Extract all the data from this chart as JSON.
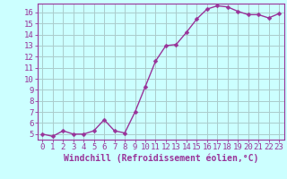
{
  "x": [
    0,
    1,
    2,
    3,
    4,
    5,
    6,
    7,
    8,
    9,
    10,
    11,
    12,
    13,
    14,
    15,
    16,
    17,
    18,
    19,
    20,
    21,
    22,
    23
  ],
  "y": [
    5.0,
    4.8,
    5.3,
    5.0,
    5.0,
    5.3,
    6.3,
    5.3,
    5.1,
    7.0,
    9.3,
    11.6,
    13.0,
    13.1,
    14.2,
    15.4,
    16.3,
    16.6,
    16.5,
    16.1,
    15.8,
    15.8,
    15.5,
    15.9
  ],
  "line_color": "#993399",
  "marker": "D",
  "marker_size": 2.5,
  "linewidth": 1.0,
  "xlabel": "Windchill (Refroidissement éolien,°C)",
  "xlabel_fontsize": 7,
  "ylabel_ticks": [
    5,
    6,
    7,
    8,
    9,
    10,
    11,
    12,
    13,
    14,
    15,
    16
  ],
  "ylim": [
    4.5,
    16.8
  ],
  "xlim": [
    -0.5,
    23.5
  ],
  "bg_color": "#ccffff",
  "grid_color": "#aacccc",
  "tick_label_fontsize": 6.5,
  "xtick_labels": [
    "0",
    "1",
    "2",
    "3",
    "4",
    "5",
    "6",
    "7",
    "8",
    "9",
    "10",
    "11",
    "12",
    "13",
    "14",
    "15",
    "16",
    "17",
    "18",
    "19",
    "20",
    "21",
    "22",
    "23"
  ]
}
